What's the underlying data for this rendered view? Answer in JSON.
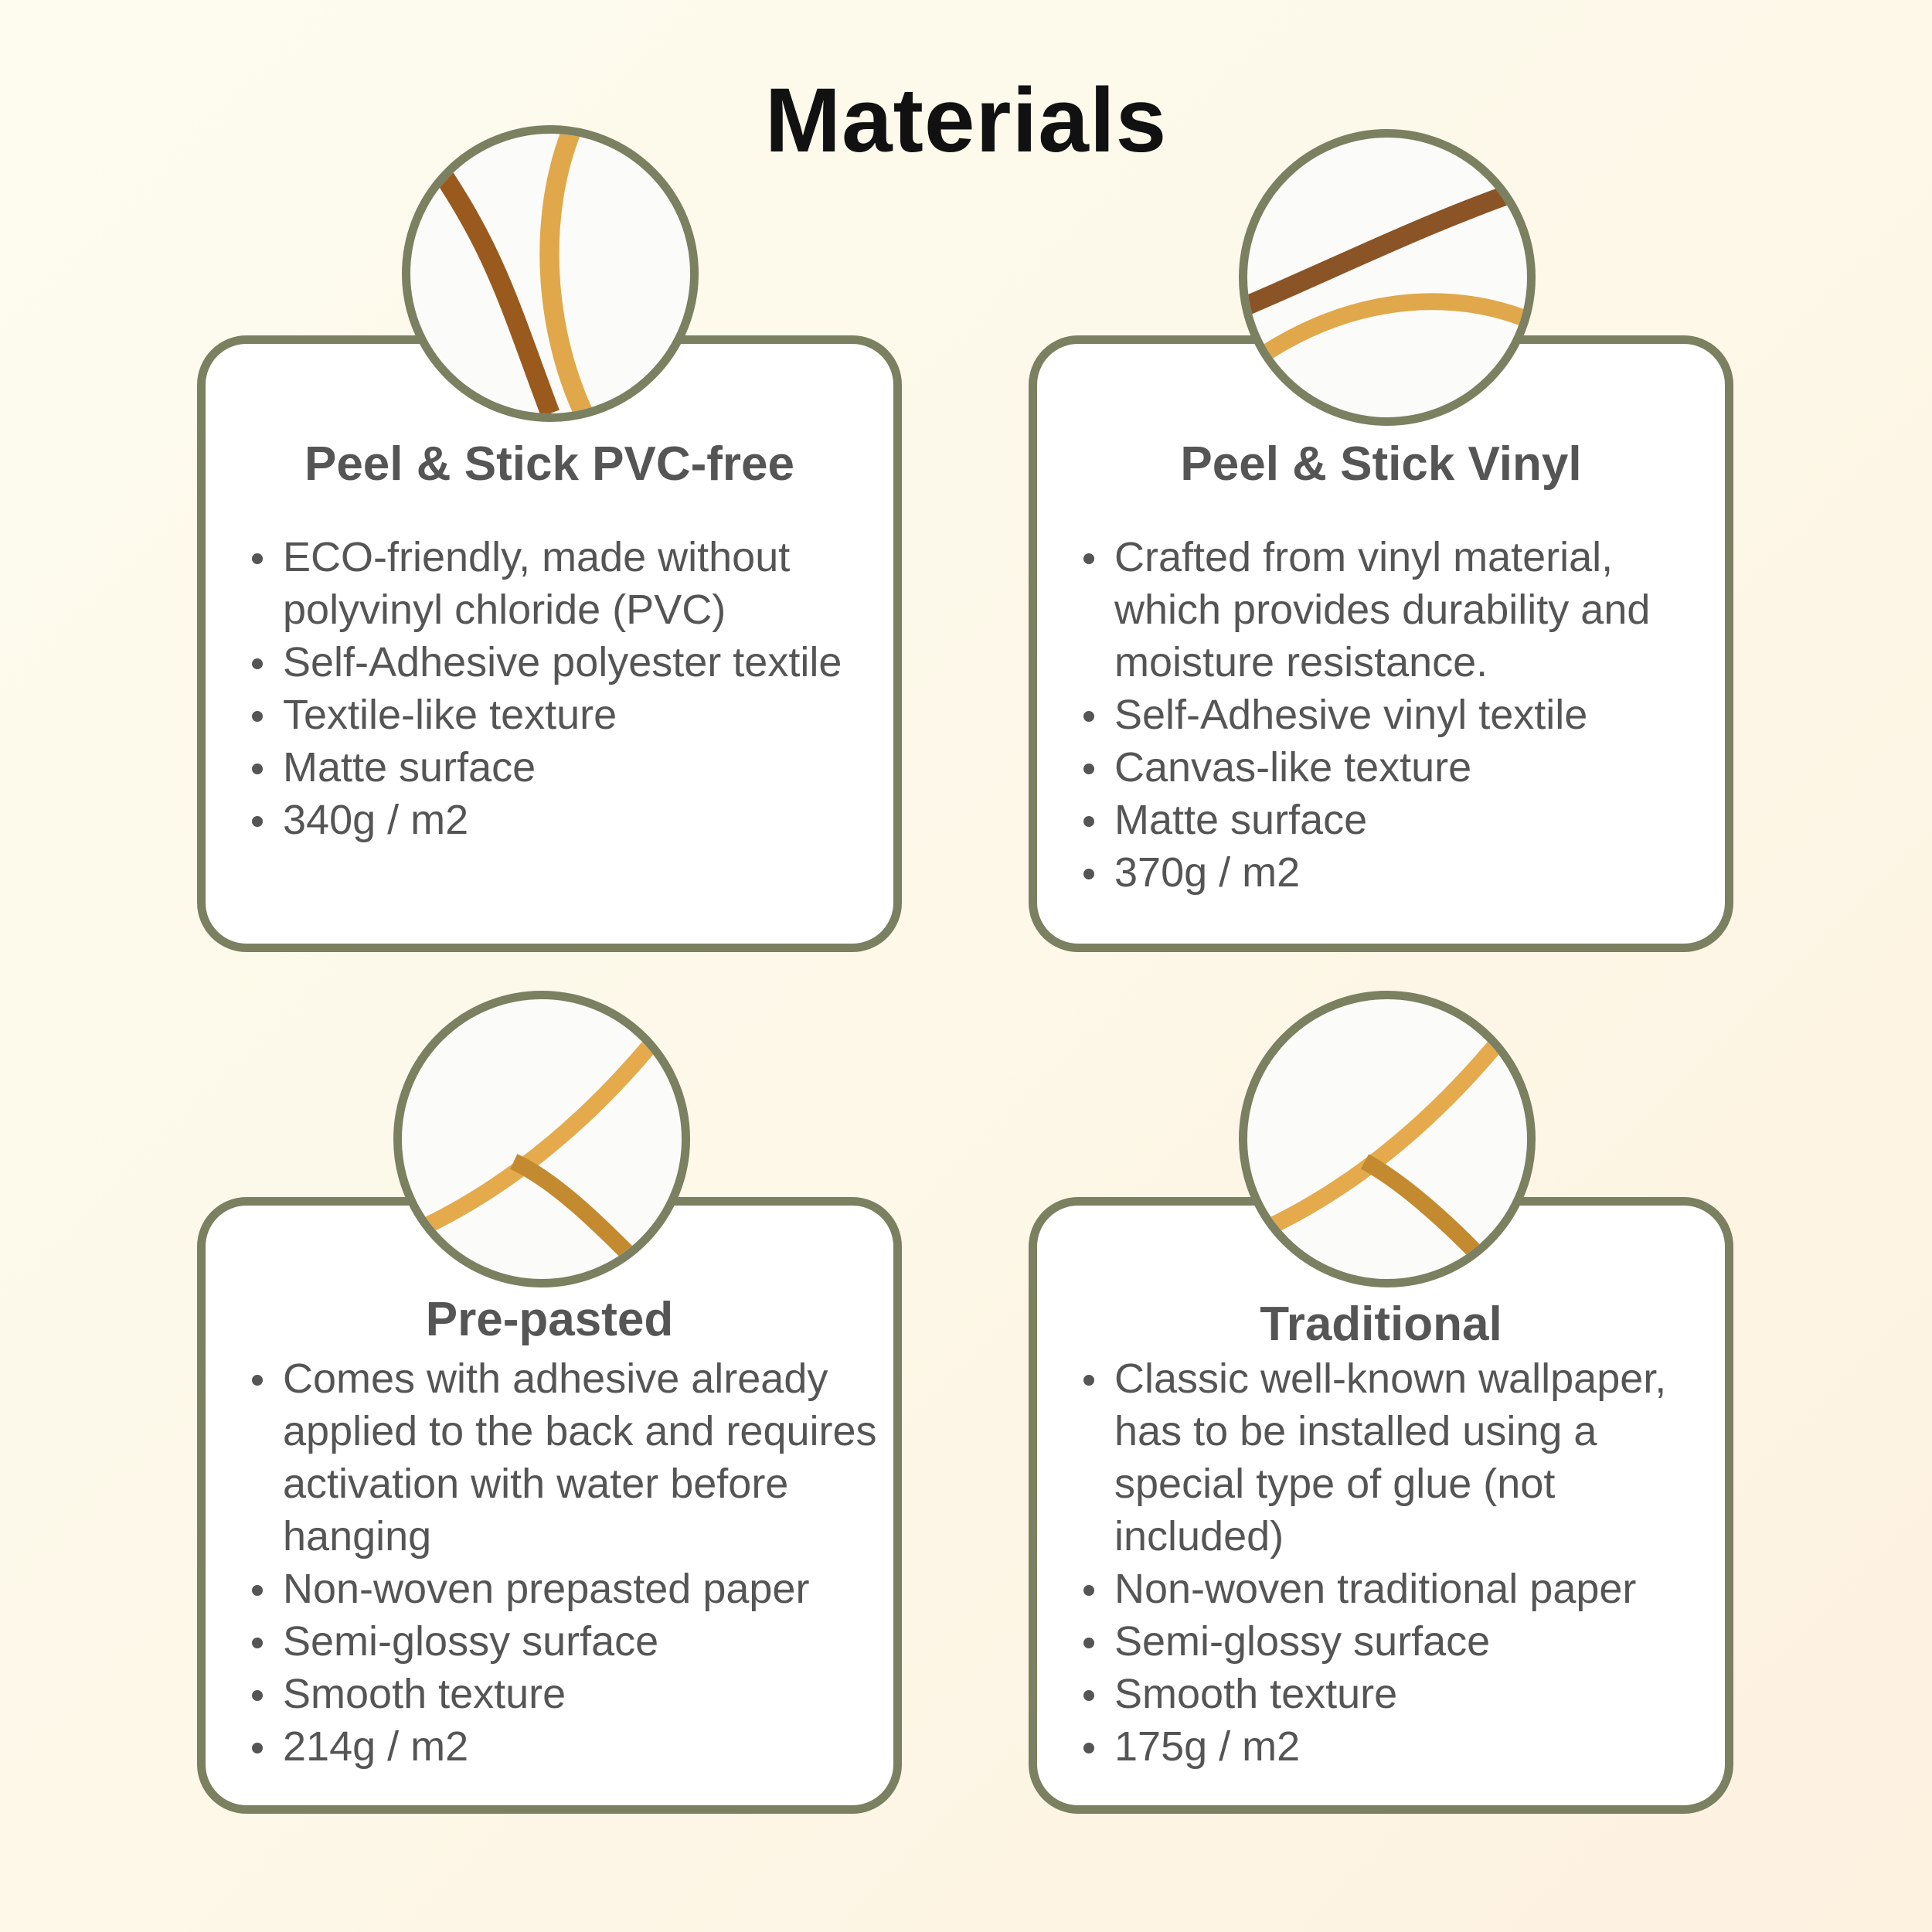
{
  "title": "Materials",
  "colors": {
    "border": "#7a8060",
    "text": "#555555",
    "gold": "#e0a84a",
    "brown": "#9a5a1e"
  },
  "cards": [
    {
      "title": "Peel & Stick PVC-free",
      "items": [
        "ECO-friendly, made without polyvinyl chloride (PVC)",
        "Self-Adhesive polyester textile",
        "Textile-like texture",
        "Matte surface",
        "340g / m2"
      ]
    },
    {
      "title": "Peel & Stick Vinyl",
      "items": [
        "Crafted from vinyl material, which provides durability and moisture resistance.",
        "Self-Adhesive vinyl textile",
        "Canvas-like texture",
        "Matte surface",
        "370g / m2"
      ]
    },
    {
      "title": "Pre-pasted",
      "items": [
        "Comes with adhesive already applied to the back and requires activation with water before hanging",
        "Non-woven prepasted paper",
        "Semi-glossy surface",
        "Smooth texture",
        "214g / m2"
      ]
    },
    {
      "title": "Traditional",
      "items": [
        "Classic well-known wallpaper, has to be installed using a special type of glue (not included)",
        "Non-woven traditional paper",
        "Semi-glossy surface",
        "Smooth texture",
        "175g / m2"
      ]
    }
  ]
}
